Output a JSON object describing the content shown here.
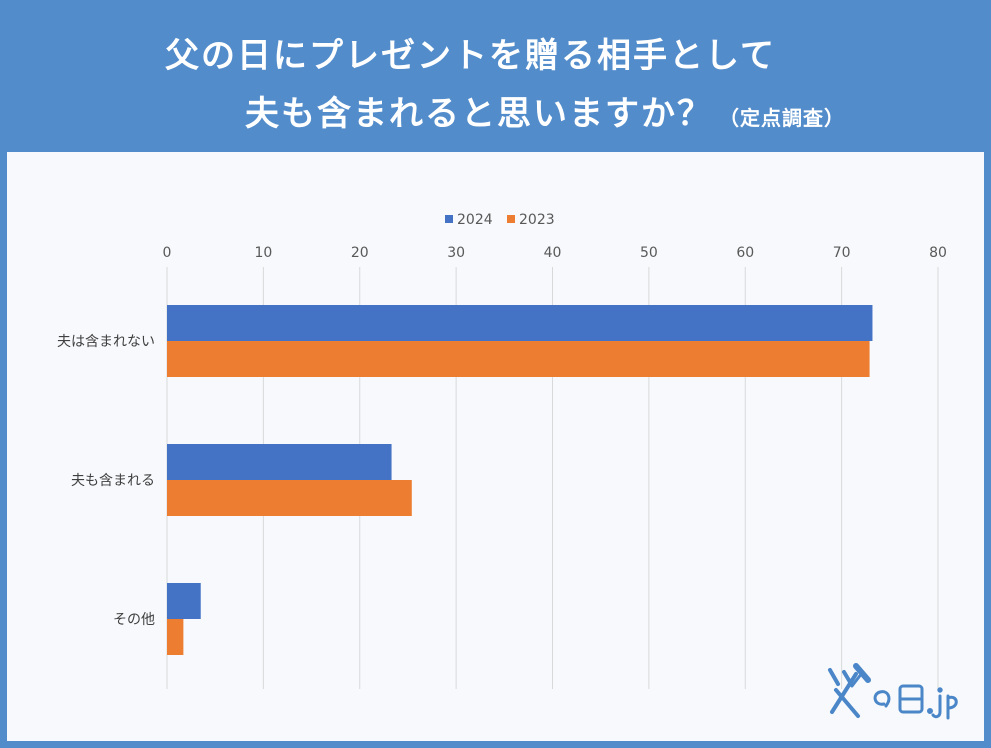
{
  "header": {
    "title_line1": "父の日にプレゼントを贈る相手として",
    "title_line2": "夫も含まれると思いますか？",
    "title_note": "（定点調査）"
  },
  "chart_data": {
    "type": "bar",
    "orientation": "horizontal",
    "categories": [
      "夫は含まれない",
      "夫も含まれる",
      "その他"
    ],
    "series": [
      {
        "name": "2024",
        "color": "#4472c4",
        "values": [
          73.2,
          23.3,
          3.5
        ]
      },
      {
        "name": "2023",
        "color": "#ed7d31",
        "values": [
          72.9,
          25.4,
          1.7
        ]
      }
    ],
    "xlim": [
      0,
      80
    ],
    "xticks": [
      0,
      10,
      20,
      30,
      40,
      50,
      60,
      70,
      80
    ],
    "x_axis_position": "top",
    "grid": true,
    "legend_position": "top",
    "title": "",
    "xlabel": "",
    "ylabel": ""
  },
  "logo": {
    "text": "父の日.jp",
    "icon": "hammer-logo-icon"
  }
}
